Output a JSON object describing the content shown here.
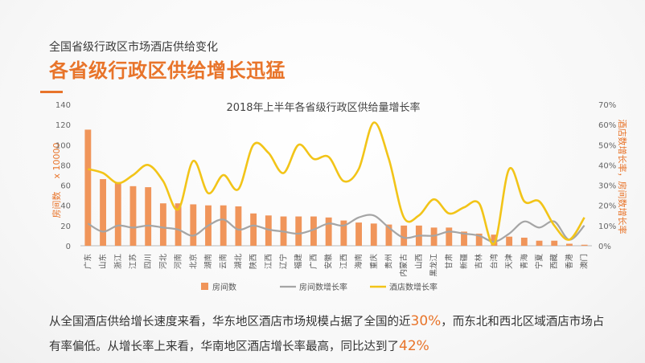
{
  "header": {
    "subtitle": "全国省级行政区市场酒店供给变化",
    "headline": "各省级行政区供给增长迅猛"
  },
  "caption": {
    "part1": "从全国酒店供给增长速度来看，华东地区酒店市场规模占据了全国的近",
    "highlight1": "30%",
    "part2": "，而东北和西北区域酒店市场占有率偏低。从增长率上来看，华南地区酒店增长率最高，同比达到了",
    "highlight2": "42%"
  },
  "colors": {
    "accent": "#e8742a",
    "bar": "#f0955a",
    "room_growth": "#a5a5a5",
    "hotel_growth": "#f2c418"
  },
  "chart_data": {
    "type": "bar",
    "title": "2018年上半年各省级行政区供给量增长率",
    "ylabel": "房间数",
    "ylabel_unit": "x 10000",
    "y2label": "酒店数增长率，房间数增长率",
    "ylim": [
      0,
      140
    ],
    "yticks": [
      0,
      20,
      40,
      60,
      80,
      100,
      120,
      140
    ],
    "y2lim": [
      0,
      70
    ],
    "y2ticks": [
      "0%",
      "10%",
      "20%",
      "30%",
      "40%",
      "50%",
      "60%",
      "70%"
    ],
    "categories": [
      "广东",
      "山东",
      "浙江",
      "江苏",
      "四川",
      "河北",
      "河南",
      "北京",
      "湖南",
      "云南",
      "湖北",
      "陕西",
      "江西",
      "辽宁",
      "福建",
      "广西",
      "安徽",
      "江西",
      "海南",
      "重庆",
      "贵州",
      "内蒙古",
      "山西",
      "黑龙江",
      "甘肃",
      "新疆",
      "吉林",
      "台湾",
      "天津",
      "青海",
      "宁夏",
      "西藏",
      "香港",
      "澳门"
    ],
    "series": [
      {
        "name": "房间数",
        "axis": "left",
        "type": "bar",
        "values": [
          115,
          66,
          63,
          59,
          58,
          42,
          42,
          41,
          40,
          40,
          39,
          32,
          30,
          29,
          29,
          29,
          28,
          25,
          23,
          22,
          21,
          20,
          20,
          18,
          18,
          14,
          12,
          11,
          9,
          8,
          5,
          5,
          2,
          1
        ]
      },
      {
        "name": "房间数增长率",
        "axis": "right",
        "type": "line",
        "values": [
          11,
          7,
          10,
          9,
          10,
          9,
          8,
          5,
          10,
          13,
          8,
          10,
          8,
          7,
          6,
          8,
          11,
          10,
          14,
          15,
          9,
          4,
          5,
          5,
          7,
          6,
          5,
          2,
          6,
          12,
          9,
          12,
          3,
          10
        ]
      },
      {
        "name": "酒店数增长率",
        "axis": "right",
        "type": "line",
        "values": [
          38,
          36,
          31,
          35,
          40,
          32,
          18,
          42,
          26,
          35,
          28,
          50,
          46,
          36,
          50,
          43,
          44,
          32,
          38,
          61,
          43,
          14,
          15,
          23,
          16,
          19,
          21,
          1,
          38,
          22,
          22,
          10,
          3,
          14
        ]
      }
    ],
    "legend": "bottom",
    "grid": false
  }
}
